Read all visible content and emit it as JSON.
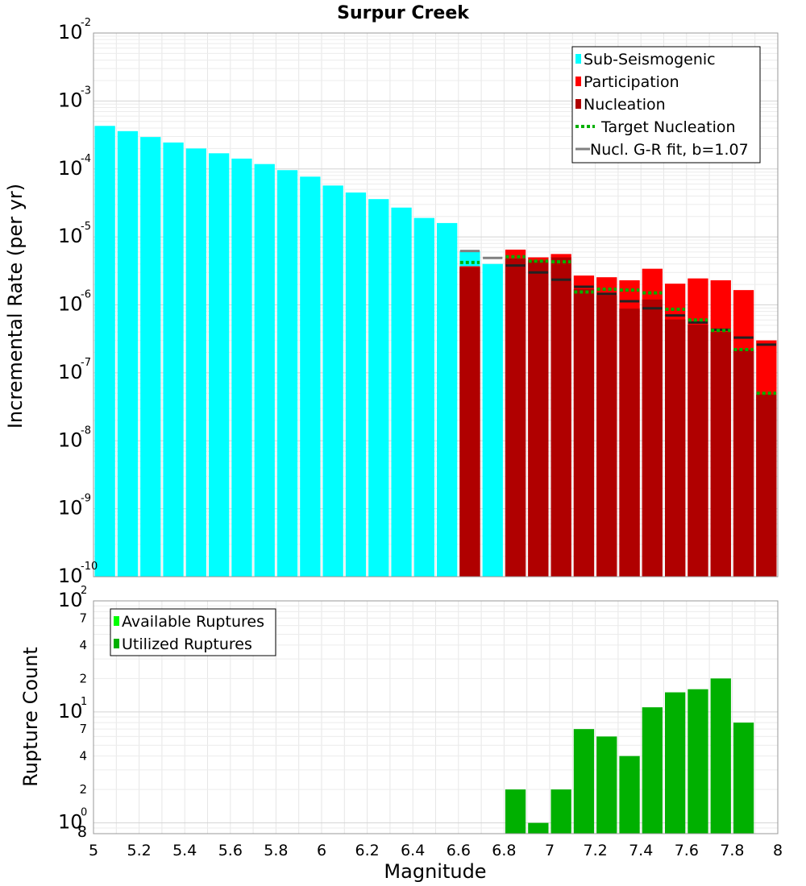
{
  "chart_data": [
    {
      "type": "bar",
      "title": "Surpur Creek",
      "ylabel": "Incremental Rate (per yr)",
      "xlabel": "",
      "xlim": [
        5,
        8
      ],
      "ylim": [
        1e-10,
        0.01
      ],
      "yscale": "log",
      "bin_width": 0.1,
      "y_ticks": [
        {
          "base": "10",
          "exp": "-10"
        },
        {
          "base": "10",
          "exp": "-9"
        },
        {
          "base": "10",
          "exp": "-8"
        },
        {
          "base": "10",
          "exp": "-7"
        },
        {
          "base": "10",
          "exp": "-6"
        },
        {
          "base": "10",
          "exp": "-5"
        },
        {
          "base": "10",
          "exp": "-4"
        },
        {
          "base": "10",
          "exp": "-3"
        },
        {
          "base": "10",
          "exp": "-2"
        }
      ],
      "legend": {
        "position": "top-right",
        "entries": [
          {
            "label": "Sub-Seismogenic",
            "color": "#00ffff",
            "style": "box"
          },
          {
            "label": "Participation",
            "color": "#ff0000",
            "style": "box"
          },
          {
            "label": "Nucleation",
            "color": "#b00000",
            "style": "box"
          },
          {
            "label": "Target Nucleation",
            "color": "#00b000",
            "style": "dotted"
          },
          {
            "label": "Nucl. G-R fit, b=1.07",
            "color": "#808080",
            "style": "line"
          }
        ]
      },
      "series": [
        {
          "name": "Sub-Seismogenic",
          "color": "#00ffff",
          "x": [
            5.05,
            5.15,
            5.25,
            5.35,
            5.45,
            5.55,
            5.65,
            5.75,
            5.85,
            5.95,
            6.05,
            6.15,
            6.25,
            6.35,
            6.45,
            6.55,
            6.65,
            6.75
          ],
          "values": [
            0.00043,
            0.00036,
            0.000295,
            0.000245,
            0.0002,
            0.00017,
            0.000142,
            0.000118,
            9.6e-05,
            7.7e-05,
            5.7e-05,
            4.5e-05,
            3.6e-05,
            2.7e-05,
            1.9e-05,
            1.6e-05,
            6.2e-06,
            4e-06
          ]
        },
        {
          "name": "Participation",
          "color": "#ff0000",
          "x": [
            6.65,
            6.75,
            6.85,
            6.95,
            7.05,
            7.15,
            7.25,
            7.35,
            7.45,
            7.55,
            7.65,
            7.75,
            7.85,
            7.95
          ],
          "values": [
            3.7e-06,
            0,
            6.5e-06,
            5e-06,
            5.6e-06,
            2.7e-06,
            2.55e-06,
            2.3e-06,
            3.4e-06,
            2.05e-06,
            2.45e-06,
            2.3e-06,
            1.65e-06,
            3e-07
          ]
        },
        {
          "name": "Nucleation",
          "color": "#b00000",
          "x": [
            6.65,
            6.75,
            6.85,
            6.95,
            7.05,
            7.15,
            7.25,
            7.35,
            7.45,
            7.55,
            7.65,
            7.75,
            7.85,
            7.95
          ],
          "values": [
            3.6e-06,
            0,
            4.8e-06,
            4.5e-06,
            5e-06,
            1.7e-06,
            1.38e-06,
            8.8e-07,
            1.2e-06,
            6.1e-07,
            5.1e-07,
            4e-07,
            2.2e-07,
            4.8e-08
          ]
        },
        {
          "name": "Target Nucleation",
          "color": "#00b000",
          "x": [
            6.65,
            6.85,
            6.95,
            7.05,
            7.15,
            7.25,
            7.35,
            7.45,
            7.55,
            7.65,
            7.75,
            7.85,
            7.95
          ],
          "values": [
            4.2e-06,
            5.1e-06,
            4.4e-06,
            4.3e-06,
            1.55e-06,
            1.7e-06,
            1.65e-06,
            1.5e-06,
            8.6e-07,
            6e-07,
            4.2e-07,
            2.2e-07,
            5e-08
          ]
        },
        {
          "name": "Nucl. G-R fit, b=1.07",
          "color": "#808080",
          "x": [
            6.65,
            6.75,
            6.85,
            6.95,
            7.05,
            7.15,
            7.25,
            7.35,
            7.45,
            7.55,
            7.65,
            7.75,
            7.85,
            7.95
          ],
          "values": [
            6.2e-06,
            4.9e-06,
            3.8e-06,
            3e-06,
            2.35e-06,
            1.85e-06,
            1.45e-06,
            1.13e-06,
            8.9e-07,
            7e-07,
            5.5e-07,
            4.3e-07,
            3.3e-07,
            2.6e-07
          ]
        }
      ]
    },
    {
      "type": "bar",
      "title": "",
      "ylabel": "Rupture Count",
      "xlabel": "Magnitude",
      "xlim": [
        5,
        8
      ],
      "ylim": [
        0.8,
        100
      ],
      "yscale": "log",
      "bin_width": 0.1,
      "x_ticks": [
        "5",
        "5.2",
        "5.4",
        "5.6",
        "5.8",
        "6",
        "6.2",
        "6.4",
        "6.6",
        "6.8",
        "7",
        "7.2",
        "7.4",
        "7.6",
        "7.8",
        "8"
      ],
      "y_ticks": [
        {
          "base": "10",
          "exp": "0"
        },
        {
          "base": "10",
          "exp": "1"
        },
        {
          "base": "10",
          "exp": "2"
        }
      ],
      "y_minor_labels": [
        {
          "value": 0.8,
          "label": "8"
        },
        {
          "value": 2,
          "label": "2"
        },
        {
          "value": 4,
          "label": "4"
        },
        {
          "value": 7,
          "label": "7"
        },
        {
          "value": 20,
          "label": "2"
        },
        {
          "value": 40,
          "label": "4"
        },
        {
          "value": 70,
          "label": "7"
        }
      ],
      "legend": {
        "position": "top-left",
        "entries": [
          {
            "label": "Available Ruptures",
            "color": "#00ff00",
            "style": "box"
          },
          {
            "label": "Utilized Ruptures",
            "color": "#00b000",
            "style": "box"
          }
        ]
      },
      "series": [
        {
          "name": "Available Ruptures",
          "color": "#00ff00",
          "x": [
            6.85,
            6.95,
            7.05,
            7.15,
            7.25,
            7.35,
            7.45,
            7.55,
            7.65,
            7.75,
            7.85
          ],
          "values": [
            2,
            1,
            2,
            7,
            6,
            4,
            11,
            15,
            16,
            20,
            8
          ]
        },
        {
          "name": "Utilized Ruptures",
          "color": "#00b000",
          "x": [
            6.85,
            6.95,
            7.05,
            7.15,
            7.25,
            7.35,
            7.45,
            7.55,
            7.65,
            7.75,
            7.85
          ],
          "values": [
            2,
            1,
            2,
            7,
            6,
            4,
            11,
            15,
            16,
            20,
            8
          ]
        }
      ]
    }
  ]
}
